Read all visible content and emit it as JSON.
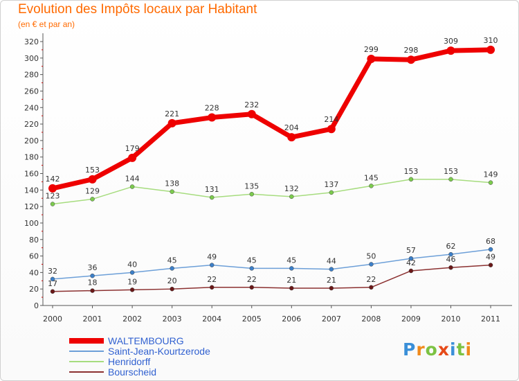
{
  "header": {
    "title": "Evolution des Impôts locaux par Habitant",
    "subtitle": "(en € et par an)"
  },
  "chart_data": {
    "type": "line",
    "title": "Evolution des Impôts locaux par Habitant",
    "subtitle": "(en € et par an)",
    "x": [
      "2000",
      "2001",
      "2002",
      "2003",
      "2004",
      "2005",
      "2006",
      "2007",
      "2008",
      "2009",
      "2010",
      "2011"
    ],
    "ylim": [
      0,
      320
    ],
    "yticks": [
      0,
      20,
      40,
      60,
      80,
      100,
      120,
      140,
      160,
      180,
      200,
      220,
      240,
      260,
      280,
      300,
      320
    ],
    "grid": false,
    "legend_placement": "bottom-left",
    "series": [
      {
        "name": "WALTEMBOURG",
        "color": "#ee0000",
        "marker": "#ee0000",
        "values": [
          142,
          153,
          179,
          221,
          228,
          232,
          204,
          214,
          299,
          298,
          309,
          310
        ]
      },
      {
        "name": "Saint-Jean-Kourtzerode",
        "color": "#6c9fd8",
        "marker": "#3c7fc8",
        "values": [
          32,
          36,
          40,
          45,
          49,
          45,
          45,
          44,
          50,
          57,
          62,
          68
        ]
      },
      {
        "name": "Henridorff",
        "color": "#a6dc7e",
        "marker": "#7ccb4e",
        "values": [
          123,
          129,
          144,
          138,
          131,
          135,
          132,
          137,
          145,
          153,
          153,
          149
        ]
      },
      {
        "name": "Bourscheid",
        "color": "#8b3030",
        "marker": "#6a1818",
        "values": [
          17,
          18,
          19,
          20,
          22,
          22,
          21,
          21,
          22,
          42,
          46,
          49
        ]
      }
    ]
  },
  "logo": {
    "letters": [
      "P",
      "r",
      "o",
      "x",
      "i",
      "t",
      "i"
    ],
    "colors": [
      "#3a8fd8",
      "#f08a1c",
      "#7cc242",
      "#e64a19",
      "#3a8fd8",
      "#7cc242",
      "#f08a1c"
    ]
  }
}
